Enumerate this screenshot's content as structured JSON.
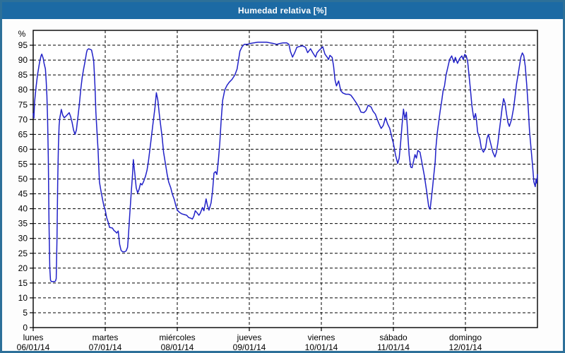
{
  "window": {
    "title": "Humedad relativa [%]"
  },
  "colors": {
    "titlebar": "#1c6aa4",
    "frame": "#2d7099",
    "plot_background": "#ffffff",
    "axis": "#000000",
    "grid": "#000000",
    "line": "#2121c8",
    "title_text": "#ffffff"
  },
  "chart_data": {
    "type": "line",
    "title": "Humedad relativa [%]",
    "ylabel": "%",
    "ylim": [
      0,
      100
    ],
    "yticks": [
      0,
      5,
      10,
      15,
      20,
      25,
      30,
      35,
      40,
      45,
      50,
      55,
      60,
      65,
      70,
      75,
      80,
      85,
      90,
      95
    ],
    "x_range_days": [
      0,
      7
    ],
    "grid": "dashed",
    "legend": "none",
    "x_axis_days": [
      {
        "name": "lunes",
        "date": "06/01/14"
      },
      {
        "name": "martes",
        "date": "07/01/14"
      },
      {
        "name": "miércoles",
        "date": "08/01/14"
      },
      {
        "name": "jueves",
        "date": "09/01/14"
      },
      {
        "name": "viernes",
        "date": "10/01/14"
      },
      {
        "name": "sábado",
        "date": "11/01/14"
      },
      {
        "name": "domingo",
        "date": "12/01/14"
      }
    ],
    "series": [
      {
        "name": "Humedad relativa [%]",
        "x_unit": "days since 06/01/14 00:00",
        "y_unit": "%",
        "points": [
          [
            0,
            72
          ],
          [
            0.01,
            70.5
          ],
          [
            0.02,
            76
          ],
          [
            0.04,
            81
          ],
          [
            0.06,
            85
          ],
          [
            0.09,
            89.5
          ],
          [
            0.11,
            91.5
          ],
          [
            0.12,
            92
          ],
          [
            0.14,
            90.5
          ],
          [
            0.15,
            89
          ],
          [
            0.17,
            87
          ],
          [
            0.18,
            83
          ],
          [
            0.19,
            78
          ],
          [
            0.2,
            70
          ],
          [
            0.21,
            57
          ],
          [
            0.22,
            35
          ],
          [
            0.23,
            20
          ],
          [
            0.24,
            16
          ],
          [
            0.25,
            15.5
          ],
          [
            0.28,
            15.5
          ],
          [
            0.3,
            15.5
          ],
          [
            0.31,
            15.7
          ],
          [
            0.32,
            16.5
          ],
          [
            0.33,
            30
          ],
          [
            0.34,
            49
          ],
          [
            0.35,
            61
          ],
          [
            0.36,
            68
          ],
          [
            0.37,
            70.6
          ],
          [
            0.38,
            72
          ],
          [
            0.39,
            73.4
          ],
          [
            0.41,
            71.5
          ],
          [
            0.43,
            70.6
          ],
          [
            0.45,
            71
          ],
          [
            0.48,
            71.8
          ],
          [
            0.5,
            72.3
          ],
          [
            0.52,
            71
          ],
          [
            0.54,
            69
          ],
          [
            0.56,
            66.5
          ],
          [
            0.58,
            65
          ],
          [
            0.6,
            66.5
          ],
          [
            0.62,
            70.6
          ],
          [
            0.64,
            75
          ],
          [
            0.66,
            80
          ],
          [
            0.68,
            84.2
          ],
          [
            0.7,
            87
          ],
          [
            0.72,
            89.5
          ],
          [
            0.74,
            92.5
          ],
          [
            0.75,
            93.4
          ],
          [
            0.77,
            93.8
          ],
          [
            0.79,
            93.6
          ],
          [
            0.81,
            93.4
          ],
          [
            0.83,
            91
          ],
          [
            0.84,
            89.5
          ],
          [
            0.85,
            85
          ],
          [
            0.86,
            80
          ],
          [
            0.87,
            72.7
          ],
          [
            0.88,
            68
          ],
          [
            0.9,
            60
          ],
          [
            0.92,
            49
          ],
          [
            0.94,
            46
          ],
          [
            0.96,
            43.5
          ],
          [
            0.98,
            41
          ],
          [
            1,
            39.5
          ],
          [
            1.02,
            37
          ],
          [
            1.04,
            35.5
          ],
          [
            1.06,
            33.7
          ],
          [
            1.1,
            33.5
          ],
          [
            1.12,
            32.7
          ],
          [
            1.14,
            32.3
          ],
          [
            1.16,
            31.8
          ],
          [
            1.18,
            32.5
          ],
          [
            1.2,
            28
          ],
          [
            1.22,
            26
          ],
          [
            1.24,
            25.5
          ],
          [
            1.27,
            25.5
          ],
          [
            1.29,
            25.8
          ],
          [
            1.31,
            27
          ],
          [
            1.32,
            30
          ],
          [
            1.34,
            38
          ],
          [
            1.36,
            45
          ],
          [
            1.38,
            52
          ],
          [
            1.39,
            56.5
          ],
          [
            1.41,
            52
          ],
          [
            1.43,
            47
          ],
          [
            1.45,
            45.3
          ],
          [
            1.47,
            46.5
          ],
          [
            1.49,
            48.5
          ],
          [
            1.51,
            48
          ],
          [
            1.53,
            49
          ],
          [
            1.56,
            51
          ],
          [
            1.58,
            53
          ],
          [
            1.6,
            56
          ],
          [
            1.63,
            62
          ],
          [
            1.66,
            68
          ],
          [
            1.69,
            74
          ],
          [
            1.71,
            79
          ],
          [
            1.73,
            76.5
          ],
          [
            1.75,
            72
          ],
          [
            1.77,
            68
          ],
          [
            1.79,
            64
          ],
          [
            1.81,
            59
          ],
          [
            1.84,
            54.5
          ],
          [
            1.86,
            51.5
          ],
          [
            1.88,
            49
          ],
          [
            1.91,
            47
          ],
          [
            1.93,
            45
          ],
          [
            1.96,
            43
          ],
          [
            1.98,
            41
          ],
          [
            2,
            39.5
          ],
          [
            2.03,
            38.8
          ],
          [
            2.06,
            38.3
          ],
          [
            2.1,
            38
          ],
          [
            2.13,
            37.8
          ],
          [
            2.16,
            37
          ],
          [
            2.19,
            36.8
          ],
          [
            2.21,
            36.5
          ],
          [
            2.23,
            37.5
          ],
          [
            2.25,
            39.3
          ],
          [
            2.27,
            38.8
          ],
          [
            2.3,
            37.8
          ],
          [
            2.32,
            38.5
          ],
          [
            2.35,
            40.4
          ],
          [
            2.37,
            39.3
          ],
          [
            2.4,
            43.3
          ],
          [
            2.42,
            41
          ],
          [
            2.44,
            39.5
          ],
          [
            2.47,
            42
          ],
          [
            2.49,
            46
          ],
          [
            2.51,
            52
          ],
          [
            2.53,
            52.5
          ],
          [
            2.55,
            51.5
          ],
          [
            2.57,
            56
          ],
          [
            2.59,
            62
          ],
          [
            2.61,
            70
          ],
          [
            2.63,
            76.5
          ],
          [
            2.66,
            80
          ],
          [
            2.69,
            81.5
          ],
          [
            2.72,
            82.5
          ],
          [
            2.76,
            83.5
          ],
          [
            2.8,
            85
          ],
          [
            2.83,
            87
          ],
          [
            2.85,
            90
          ],
          [
            2.87,
            93
          ],
          [
            2.9,
            94.5
          ],
          [
            2.93,
            95.3
          ],
          [
            2.97,
            95.3
          ],
          [
            3.02,
            95.6
          ],
          [
            3.06,
            95.8
          ],
          [
            3.12,
            96
          ],
          [
            3.18,
            96
          ],
          [
            3.24,
            96
          ],
          [
            3.29,
            95.8
          ],
          [
            3.33,
            95.6
          ],
          [
            3.38,
            95.3
          ],
          [
            3.43,
            95.6
          ],
          [
            3.47,
            95.8
          ],
          [
            3.52,
            95.8
          ],
          [
            3.55,
            95.3
          ],
          [
            3.57,
            93
          ],
          [
            3.6,
            91
          ],
          [
            3.63,
            92.5
          ],
          [
            3.66,
            94.3
          ],
          [
            3.7,
            94.6
          ],
          [
            3.74,
            94.8
          ],
          [
            3.78,
            94.3
          ],
          [
            3.81,
            92.5
          ],
          [
            3.85,
            93.8
          ],
          [
            3.88,
            92.5
          ],
          [
            3.92,
            91
          ],
          [
            3.94,
            92.5
          ],
          [
            3.97,
            93.3
          ],
          [
            4,
            94
          ],
          [
            4.02,
            94.5
          ],
          [
            4.05,
            92
          ],
          [
            4.08,
            91
          ],
          [
            4.1,
            90.2
          ],
          [
            4.12,
            91.6
          ],
          [
            4.15,
            90.9
          ],
          [
            4.17,
            88
          ],
          [
            4.19,
            83.3
          ],
          [
            4.21,
            81.3
          ],
          [
            4.24,
            83
          ],
          [
            4.27,
            79.7
          ],
          [
            4.3,
            78.9
          ],
          [
            4.34,
            78.5
          ],
          [
            4.38,
            78.5
          ],
          [
            4.41,
            78.2
          ],
          [
            4.44,
            77.2
          ],
          [
            4.49,
            75.4
          ],
          [
            4.52,
            74.2
          ],
          [
            4.55,
            72.5
          ],
          [
            4.59,
            72.3
          ],
          [
            4.62,
            73
          ],
          [
            4.65,
            74.8
          ],
          [
            4.69,
            74.2
          ],
          [
            4.72,
            72.7
          ],
          [
            4.75,
            71.8
          ],
          [
            4.78,
            69.8
          ],
          [
            4.8,
            68.6
          ],
          [
            4.83,
            67
          ],
          [
            4.86,
            68
          ],
          [
            4.89,
            70.6
          ],
          [
            4.92,
            68.5
          ],
          [
            4.95,
            67
          ],
          [
            4.98,
            63.8
          ],
          [
            5,
            62
          ],
          [
            5.03,
            58
          ],
          [
            5.06,
            55.2
          ],
          [
            5.08,
            57
          ],
          [
            5.1,
            62
          ],
          [
            5.12,
            68
          ],
          [
            5.14,
            73.5
          ],
          [
            5.16,
            70.3
          ],
          [
            5.18,
            72.5
          ],
          [
            5.2,
            65
          ],
          [
            5.22,
            58
          ],
          [
            5.24,
            54
          ],
          [
            5.26,
            53.8
          ],
          [
            5.28,
            56
          ],
          [
            5.3,
            58.2
          ],
          [
            5.32,
            57
          ],
          [
            5.34,
            59.6
          ],
          [
            5.37,
            59
          ],
          [
            5.4,
            55
          ],
          [
            5.43,
            51
          ],
          [
            5.46,
            46.2
          ],
          [
            5.49,
            40.7
          ],
          [
            5.51,
            39.8
          ],
          [
            5.54,
            46.2
          ],
          [
            5.56,
            51
          ],
          [
            5.58,
            55.7
          ],
          [
            5.59,
            60.5
          ],
          [
            5.61,
            65.6
          ],
          [
            5.63,
            69.4
          ],
          [
            5.65,
            73
          ],
          [
            5.67,
            76
          ],
          [
            5.69,
            79.7
          ],
          [
            5.71,
            81.3
          ],
          [
            5.73,
            84.9
          ],
          [
            5.76,
            88
          ],
          [
            5.78,
            90.2
          ],
          [
            5.81,
            91.4
          ],
          [
            5.84,
            89.2
          ],
          [
            5.86,
            90.9
          ],
          [
            5.89,
            88.9
          ],
          [
            5.92,
            90.5
          ],
          [
            5.95,
            91.4
          ],
          [
            5.97,
            90.2
          ],
          [
            5.99,
            91.9
          ],
          [
            6.01,
            91.5
          ],
          [
            6.03,
            89.7
          ],
          [
            6.05,
            84.9
          ],
          [
            6.07,
            80.1
          ],
          [
            6.09,
            74.6
          ],
          [
            6.11,
            71.3
          ],
          [
            6.12,
            70.3
          ],
          [
            6.14,
            72
          ],
          [
            6.15,
            70.6
          ],
          [
            6.17,
            65.8
          ],
          [
            6.2,
            63.5
          ],
          [
            6.22,
            60.5
          ],
          [
            6.25,
            59
          ],
          [
            6.28,
            60.5
          ],
          [
            6.3,
            63.7
          ],
          [
            6.32,
            65
          ],
          [
            6.35,
            62
          ],
          [
            6.38,
            59
          ],
          [
            6.41,
            57.4
          ],
          [
            6.43,
            59
          ],
          [
            6.45,
            62
          ],
          [
            6.47,
            66
          ],
          [
            6.49,
            70
          ],
          [
            6.51,
            74
          ],
          [
            6.53,
            77
          ],
          [
            6.55,
            75.5
          ],
          [
            6.57,
            72
          ],
          [
            6.59,
            69
          ],
          [
            6.61,
            67.7
          ],
          [
            6.64,
            70
          ],
          [
            6.67,
            74
          ],
          [
            6.69,
            78
          ],
          [
            6.71,
            82
          ],
          [
            6.73,
            85
          ],
          [
            6.75,
            88
          ],
          [
            6.77,
            91
          ],
          [
            6.79,
            92.4
          ],
          [
            6.81,
            91.5
          ],
          [
            6.83,
            88
          ],
          [
            6.85,
            82
          ],
          [
            6.87,
            75
          ],
          [
            6.89,
            66
          ],
          [
            6.91,
            60.6
          ],
          [
            6.93,
            55
          ],
          [
            6.95,
            49
          ],
          [
            6.97,
            47.4
          ],
          [
            6.98,
            50
          ],
          [
            6.99,
            48.6
          ],
          [
            7,
            51.5
          ]
        ]
      }
    ]
  }
}
